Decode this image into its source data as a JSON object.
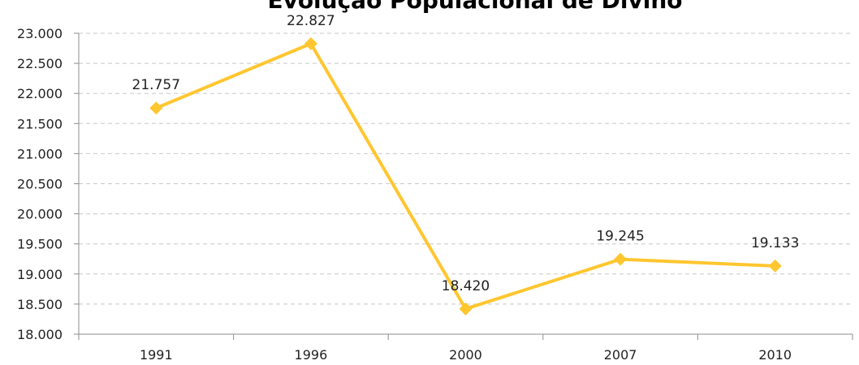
{
  "chart_data": {
    "type": "line",
    "title": "Evolução Populacional de Divino",
    "categories": [
      "1991",
      "1996",
      "2000",
      "2007",
      "2010"
    ],
    "series": [
      {
        "values": [
          21757,
          22827,
          18420,
          19245,
          19133
        ],
        "data_labels": [
          "21.757",
          "22.827",
          "18.420",
          "19.245",
          "19.133"
        ]
      }
    ],
    "y_tick_values": [
      18000,
      18500,
      19000,
      19500,
      20000,
      20500,
      21000,
      21500,
      22000,
      22500,
      23000
    ],
    "y_tick_labels": [
      "18.000",
      "18.500",
      "19.000",
      "19.500",
      "20.000",
      "20.500",
      "21.000",
      "21.500",
      "22.000",
      "22.500",
      "23.000"
    ],
    "ylim": [
      18000,
      23000
    ],
    "grid": "horizontal-dashed",
    "legend": "none",
    "line_color": "#FFC62F",
    "marker": "diamond"
  }
}
